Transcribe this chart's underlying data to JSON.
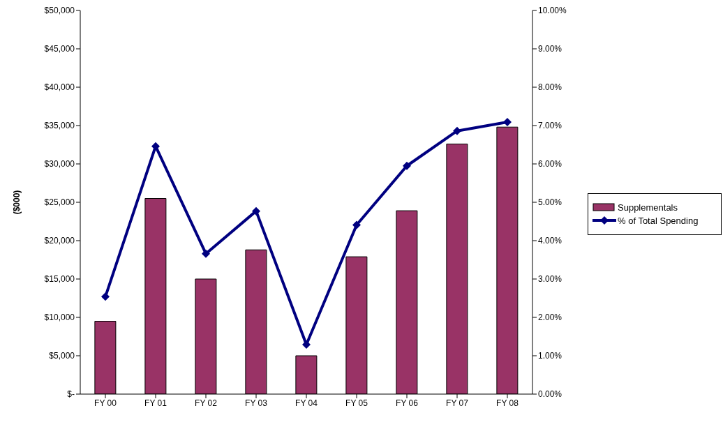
{
  "chart_data": {
    "type": "bar",
    "ylabel": "($000)",
    "categories": [
      "FY 00",
      "FY 01",
      "FY 02",
      "FY 03",
      "FY 04",
      "FY 05",
      "FY 06",
      "FY 07",
      "FY 08"
    ],
    "series": [
      {
        "name": "Supplementals",
        "color": "#993366",
        "values": [
          9500,
          25500,
          15000,
          18800,
          5000,
          17900,
          23900,
          32600,
          34800
        ]
      },
      {
        "name": "% of Total Spending",
        "type": "line",
        "axis": "y2",
        "color": "#000080",
        "marker": "diamond",
        "values": [
          2.54,
          6.46,
          3.66,
          4.77,
          1.29,
          4.41,
          5.95,
          6.86,
          7.09
        ]
      }
    ],
    "ylim": [
      0,
      50000
    ],
    "yticks": [
      {
        "value": 0,
        "label": "$-"
      },
      {
        "value": 5000,
        "label": "$5,000"
      },
      {
        "value": 10000,
        "label": "$10,000"
      },
      {
        "value": 15000,
        "label": "$15,000"
      },
      {
        "value": 20000,
        "label": "$20,000"
      },
      {
        "value": 25000,
        "label": "$25,000"
      },
      {
        "value": 30000,
        "label": "$30,000"
      },
      {
        "value": 35000,
        "label": "$35,000"
      },
      {
        "value": 40000,
        "label": "$40,000"
      },
      {
        "value": 45000,
        "label": "$45,000"
      },
      {
        "value": 50000,
        "label": "$50,000"
      }
    ],
    "y2lim": [
      0,
      10
    ],
    "y2ticks": [
      {
        "value": 0,
        "label": "0.00%"
      },
      {
        "value": 1,
        "label": "1.00%"
      },
      {
        "value": 2,
        "label": "2.00%"
      },
      {
        "value": 3,
        "label": "3.00%"
      },
      {
        "value": 4,
        "label": "4.00%"
      },
      {
        "value": 5,
        "label": "5.00%"
      },
      {
        "value": 6,
        "label": "6.00%"
      },
      {
        "value": 7,
        "label": "7.00%"
      },
      {
        "value": 8,
        "label": "8.00%"
      },
      {
        "value": 9,
        "label": "9.00%"
      },
      {
        "value": 10,
        "label": "10.00%"
      }
    ],
    "grid": false,
    "legend": "right"
  }
}
